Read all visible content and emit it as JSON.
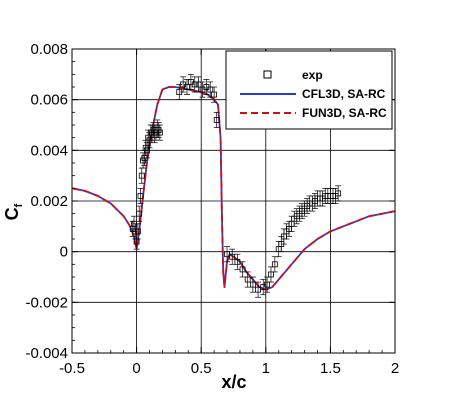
{
  "chart_data": {
    "type": "line",
    "title": "",
    "xlabel": "x/c",
    "ylabel_main": "C",
    "ylabel_sub": "f",
    "xlim": [
      -0.5,
      2
    ],
    "ylim": [
      -0.004,
      0.008
    ],
    "xticks": [
      -0.5,
      0,
      0.5,
      1,
      1.5,
      2
    ],
    "xtick_labels": [
      "-0.5",
      "0",
      "0.5",
      "1",
      "1.5",
      "2"
    ],
    "yticks": [
      -0.004,
      -0.002,
      0,
      0.002,
      0.004,
      0.006,
      0.008
    ],
    "ytick_labels": [
      "-0.004",
      "-0.002",
      "0",
      "0.002",
      "0.004",
      "0.006",
      "0.008"
    ],
    "grid": true,
    "legend_position": "top-right",
    "colors": {
      "cfl3d": "#2b3bd6",
      "fun3d": "#d01010",
      "exp": "#000000"
    },
    "series": [
      {
        "name": "exp",
        "style": "markers",
        "x": [
          -0.03,
          -0.02,
          -0.01,
          0.0,
          0.01,
          0.02,
          0.03,
          0.04,
          0.05,
          0.06,
          0.07,
          0.08,
          0.09,
          0.1,
          0.11,
          0.12,
          0.13,
          0.14,
          0.15,
          0.16,
          0.17,
          0.18,
          0.33,
          0.36,
          0.39,
          0.42,
          0.45,
          0.48,
          0.51,
          0.54,
          0.57,
          0.6,
          0.62,
          0.7,
          0.74,
          0.78,
          0.82,
          0.86,
          0.9,
          0.94,
          0.98,
          1.01,
          1.04,
          1.07,
          1.1,
          1.12,
          1.14,
          1.16,
          1.18,
          1.2,
          1.22,
          1.24,
          1.26,
          1.28,
          1.3,
          1.32,
          1.34,
          1.36,
          1.38,
          1.4,
          1.42,
          1.44,
          1.46,
          1.48,
          1.5,
          1.52,
          1.54,
          1.56
        ],
        "y": [
          0.0009,
          0.0011,
          0.0008,
          0.0004,
          0.0008,
          0.0015,
          0.0022,
          0.003,
          0.0036,
          0.0037,
          0.0041,
          0.004,
          0.0045,
          0.0044,
          0.0047,
          0.0047,
          0.0048,
          0.0046,
          0.0047,
          0.0049,
          0.0048,
          0.0047,
          0.0063,
          0.0066,
          0.0065,
          0.0067,
          0.0066,
          0.0066,
          0.0064,
          0.0065,
          0.0064,
          0.0062,
          0.0052,
          -0.0001,
          -0.0002,
          -0.0004,
          -0.0007,
          -0.0011,
          -0.0013,
          -0.0015,
          -0.0014,
          -0.0013,
          -0.0009,
          -0.0005,
          0.0001,
          0.0003,
          0.0006,
          0.0008,
          0.0009,
          0.0011,
          0.0013,
          0.0014,
          0.0015,
          0.0016,
          0.0017,
          0.0018,
          0.0019,
          0.0019,
          0.002,
          0.0021,
          0.0021,
          0.0021,
          0.0022,
          0.0022,
          0.0022,
          0.0022,
          0.0022,
          0.0023
        ]
      },
      {
        "name": "CFL3D, SA-RC",
        "style": "solid",
        "x": [
          -0.5,
          -0.4,
          -0.3,
          -0.2,
          -0.1,
          -0.05,
          -0.02,
          0.0,
          0.02,
          0.05,
          0.08,
          0.12,
          0.16,
          0.2,
          0.25,
          0.3,
          0.4,
          0.5,
          0.55,
          0.6,
          0.63,
          0.65,
          0.66,
          0.67,
          0.68,
          0.69,
          0.7,
          0.72,
          0.75,
          0.8,
          0.85,
          0.9,
          0.95,
          1.0,
          1.05,
          1.1,
          1.2,
          1.3,
          1.4,
          1.5,
          1.6,
          1.7,
          1.8,
          1.9,
          2.0
        ],
        "y": [
          0.0025,
          0.0024,
          0.0022,
          0.0019,
          0.0014,
          0.001,
          0.0006,
          0.0001,
          0.0008,
          0.0022,
          0.0035,
          0.0048,
          0.0058,
          0.0064,
          0.0065,
          0.0065,
          0.0064,
          0.0063,
          0.0062,
          0.006,
          0.0058,
          0.0045,
          0.0015,
          -0.0008,
          -0.0014,
          -0.0009,
          -0.0004,
          -0.0001,
          -0.0002,
          -0.0004,
          -0.0008,
          -0.0011,
          -0.0014,
          -0.0015,
          -0.0014,
          -0.0011,
          -0.0005,
          0.0001,
          0.0005,
          0.0008,
          0.001,
          0.0012,
          0.0014,
          0.0015,
          0.0016
        ]
      },
      {
        "name": "FUN3D, SA-RC",
        "style": "dashed",
        "x": [
          -0.5,
          -0.4,
          -0.3,
          -0.2,
          -0.1,
          -0.05,
          -0.02,
          0.0,
          0.02,
          0.05,
          0.08,
          0.12,
          0.16,
          0.2,
          0.25,
          0.3,
          0.4,
          0.5,
          0.55,
          0.6,
          0.63,
          0.65,
          0.66,
          0.67,
          0.68,
          0.69,
          0.7,
          0.72,
          0.75,
          0.8,
          0.85,
          0.9,
          0.95,
          1.0,
          1.05,
          1.1,
          1.2,
          1.3,
          1.4,
          1.5,
          1.6,
          1.7,
          1.8,
          1.9,
          2.0
        ],
        "y": [
          0.0025,
          0.0024,
          0.0022,
          0.0019,
          0.0014,
          0.001,
          0.0006,
          0.0001,
          0.0008,
          0.0022,
          0.0035,
          0.0048,
          0.0058,
          0.0064,
          0.0065,
          0.0065,
          0.0064,
          0.0063,
          0.0062,
          0.006,
          0.0058,
          0.0045,
          0.0015,
          -0.0008,
          -0.0014,
          -0.0009,
          -0.0004,
          -0.0001,
          -0.0002,
          -0.0004,
          -0.0008,
          -0.0011,
          -0.0014,
          -0.0015,
          -0.0014,
          -0.0011,
          -0.0005,
          0.0001,
          0.0005,
          0.0008,
          0.001,
          0.0012,
          0.0014,
          0.0015,
          0.0016
        ]
      }
    ]
  }
}
